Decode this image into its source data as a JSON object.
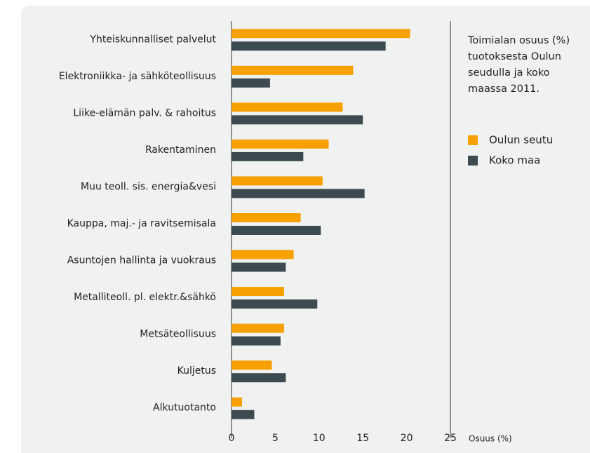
{
  "chart_data": {
    "type": "bar",
    "orientation": "horizontal",
    "legend_title": "Toimialan osuus (%) tuotoksesta Oulun seudulla ja koko maassa 2011.",
    "x_label": "Osuus (%)",
    "categories": [
      "Yhteiskunnalliset palvelut",
      "Elektroniikka- ja sähköteollisuus",
      "Liike-elämän palv. & rahoitus",
      "Rakentaminen",
      "Muu teoll. sis. energia&vesi",
      "Kauppa, maj.- ja ravitsemisala",
      "Asuntojen hallinta ja vuokraus",
      "Metalliteoll. pl. elektr.&sähkö",
      "Metsäteollisuus",
      "Kuljetus",
      "Alkutuotanto"
    ],
    "series": [
      {
        "name": "Oulun seutu",
        "color": "#f7a000",
        "values": [
          20.4,
          13.9,
          12.7,
          11.1,
          10.4,
          7.9,
          7.1,
          6.0,
          6.0,
          4.6,
          1.2
        ]
      },
      {
        "name": "Koko maa",
        "color": "#3d4a50",
        "values": [
          17.6,
          4.4,
          15.0,
          8.2,
          15.2,
          10.2,
          6.2,
          9.8,
          5.6,
          6.2,
          2.6
        ]
      }
    ],
    "xlim": [
      0,
      25
    ],
    "xticks": [
      0,
      5,
      10,
      15,
      20,
      25
    ],
    "legend": "right"
  }
}
